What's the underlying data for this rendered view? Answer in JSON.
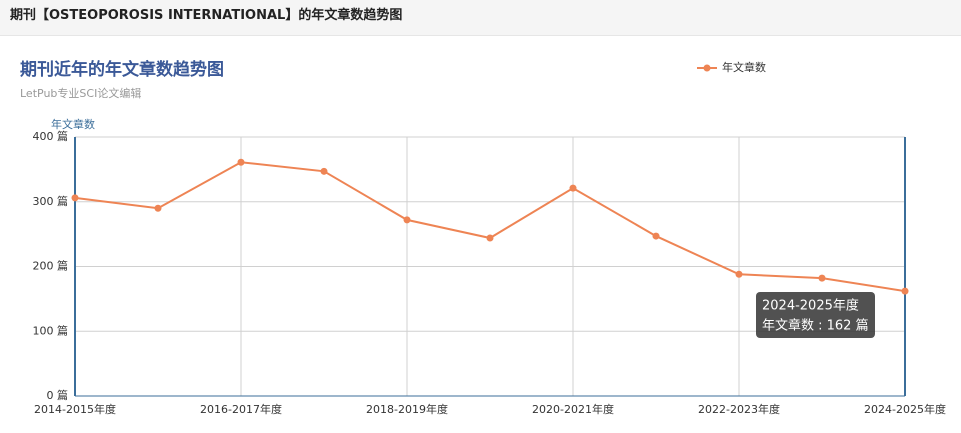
{
  "header": {
    "title": "期刊【OSTEOPOROSIS INTERNATIONAL】的年文章数趋势图"
  },
  "chart_data": {
    "type": "line",
    "title": "期刊近年的年文章数趋势图",
    "subtitle": "LetPub专业SCI论文编辑",
    "y_label": "年文章数",
    "categories": [
      "2014-2015年度",
      null,
      "2016-2017年度",
      null,
      "2018-2019年度",
      null,
      "2020-2021年度",
      null,
      "2022-2023年度",
      null,
      "2024-2025年度"
    ],
    "series": [
      {
        "name": "年文章数",
        "color": "#ee8454",
        "values": [
          306,
          290,
          361,
          347,
          272,
          244,
          321,
          247,
          188,
          182,
          162
        ]
      }
    ],
    "ylim": [
      0,
      400
    ],
    "yticks": [
      {
        "value": 0,
        "label": "0 篇"
      },
      {
        "value": 100,
        "label": "100 篇"
      },
      {
        "value": 200,
        "label": "200 篇"
      },
      {
        "value": 300,
        "label": "300 篇"
      },
      {
        "value": 400,
        "label": "400 篇"
      }
    ],
    "grid": true,
    "legend": "top-right",
    "tooltip": {
      "title": "2024-2025年度",
      "label": "年文章数 : 162 篇"
    }
  }
}
